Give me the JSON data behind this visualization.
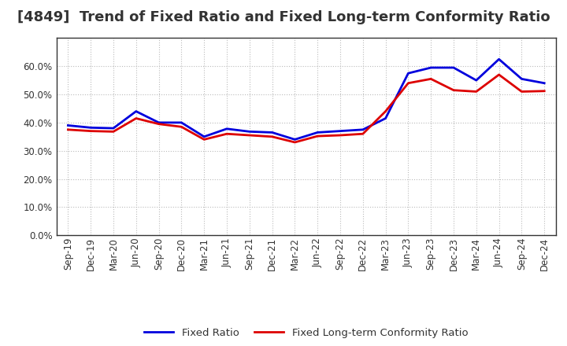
{
  "title": "[4849]  Trend of Fixed Ratio and Fixed Long-term Conformity Ratio",
  "x_labels": [
    "Sep-19",
    "Dec-19",
    "Mar-20",
    "Jun-20",
    "Sep-20",
    "Dec-20",
    "Mar-21",
    "Jun-21",
    "Sep-21",
    "Dec-21",
    "Mar-22",
    "Jun-22",
    "Sep-22",
    "Dec-22",
    "Mar-23",
    "Jun-23",
    "Sep-23",
    "Dec-23",
    "Mar-24",
    "Jun-24",
    "Sep-24",
    "Dec-24"
  ],
  "fixed_ratio": [
    0.39,
    0.382,
    0.38,
    0.44,
    0.4,
    0.4,
    0.35,
    0.378,
    0.368,
    0.365,
    0.34,
    0.365,
    0.37,
    0.375,
    0.415,
    0.575,
    0.595,
    0.595,
    0.55,
    0.625,
    0.555,
    0.54
  ],
  "fixed_lt_ratio": [
    0.375,
    0.37,
    0.368,
    0.415,
    0.395,
    0.385,
    0.34,
    0.36,
    0.355,
    0.35,
    0.33,
    0.352,
    0.355,
    0.36,
    0.44,
    0.54,
    0.555,
    0.515,
    0.51,
    0.57,
    0.51,
    0.512
  ],
  "fixed_ratio_color": "#0000dd",
  "fixed_lt_ratio_color": "#dd0000",
  "background_color": "#ffffff",
  "plot_bg_color": "#ffffff",
  "grid_color": "#bbbbbb",
  "ylim": [
    0.0,
    0.7
  ],
  "yticks": [
    0.0,
    0.1,
    0.2,
    0.3,
    0.4,
    0.5,
    0.6
  ],
  "legend_fixed_ratio": "Fixed Ratio",
  "legend_fixed_lt_ratio": "Fixed Long-term Conformity Ratio",
  "line_width": 2.0,
  "title_fontsize": 13,
  "tick_fontsize": 8.5
}
